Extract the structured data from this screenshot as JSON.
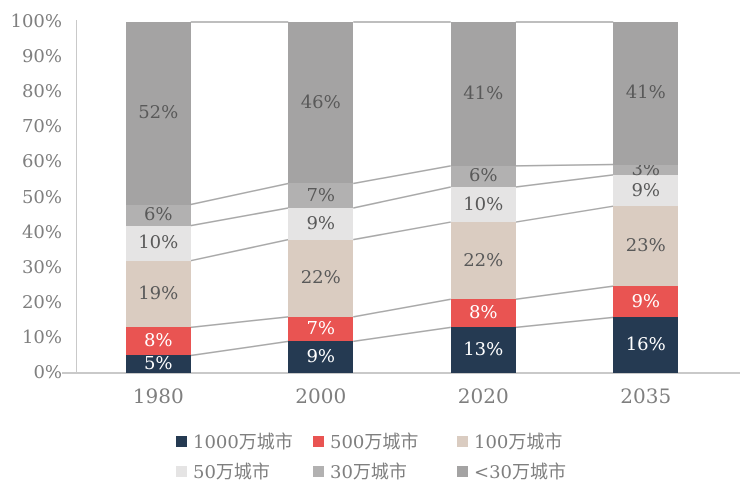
{
  "chart_data": {
    "type": "bar",
    "stacked": true,
    "percent_stacked": true,
    "title": "",
    "xlabel": "",
    "ylabel": "",
    "grid": false,
    "legend_position": "bottom",
    "categories": [
      "1980",
      "2000",
      "2020",
      "2035"
    ],
    "series": [
      {
        "name": "1000万城市",
        "color": "#253a52",
        "label_color": "#ffffff",
        "values": [
          5,
          9,
          13,
          16
        ]
      },
      {
        "name": "500万城市",
        "color": "#e95452",
        "label_color": "#ffffff",
        "values": [
          8,
          7,
          8,
          9
        ]
      },
      {
        "name": "100万城市",
        "color": "#daccc1",
        "label_color": "#595959",
        "values": [
          19,
          22,
          22,
          23
        ]
      },
      {
        "name": "50万城市",
        "color": "#e5e4e4",
        "label_color": "#595959",
        "values": [
          10,
          9,
          10,
          9
        ]
      },
      {
        "name": "30万城市",
        "color": "#b2b1b1",
        "label_color": "#595959",
        "values": [
          6,
          7,
          6,
          3
        ]
      },
      {
        "name": "<30万城市",
        "color": "#a4a3a3",
        "label_color": "#595959",
        "values": [
          52,
          46,
          41,
          41
        ]
      }
    ],
    "value_suffix": "%",
    "y_ticks": [
      "100%",
      "90%",
      "80%",
      "70%",
      "60%",
      "50%",
      "40%",
      "30%",
      "20%",
      "10%",
      "0%"
    ],
    "ylim": [
      0,
      100
    ],
    "legend_rows": [
      [
        0,
        1,
        2
      ],
      [
        3,
        4,
        5
      ]
    ],
    "colors": {
      "axis_line": "#c9c9c9",
      "series_connector_line": "#a9a9a9",
      "tick_text": "#7f7f7f",
      "x_label_text": "#7f7f7f",
      "legend_text": "#7f7f7f",
      "segment_label_dark": "#595959",
      "segment_label_light": "#ffffff"
    }
  }
}
